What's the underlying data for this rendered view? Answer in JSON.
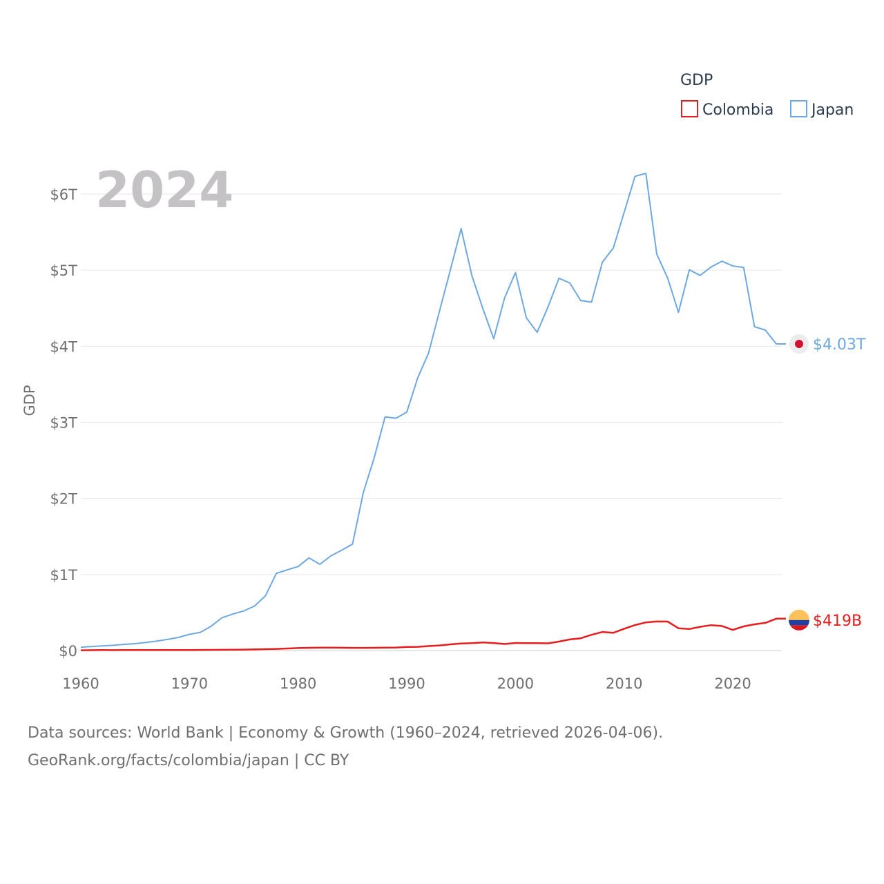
{
  "chart_data": {
    "type": "line",
    "ylabel": "GDP",
    "legend_title": "GDP",
    "current_year_label": "2024",
    "xlim": [
      1960,
      2024
    ],
    "ylim": [
      0,
      6.5
    ],
    "x_ticks": [
      1960,
      1970,
      1980,
      1990,
      2000,
      2010,
      2020
    ],
    "y_ticks": [
      {
        "value": 0,
        "label": "$0"
      },
      {
        "value": 1,
        "label": "$1T"
      },
      {
        "value": 2,
        "label": "$2T"
      },
      {
        "value": 3,
        "label": "$3T"
      },
      {
        "value": 4,
        "label": "$4T"
      },
      {
        "value": 5,
        "label": "$5T"
      },
      {
        "value": 6,
        "label": "$6T"
      }
    ],
    "units": "trillions USD",
    "series": [
      {
        "name": "Colombia",
        "color": "#e81c1c",
        "end_label": "$419B",
        "end_marker": "colombia-flag",
        "x": [
          1960,
          1961,
          1962,
          1963,
          1964,
          1965,
          1966,
          1967,
          1968,
          1969,
          1970,
          1971,
          1972,
          1973,
          1974,
          1975,
          1976,
          1977,
          1978,
          1979,
          1980,
          1981,
          1982,
          1983,
          1984,
          1985,
          1986,
          1987,
          1988,
          1989,
          1990,
          1991,
          1992,
          1993,
          1994,
          1995,
          1996,
          1997,
          1998,
          1999,
          2000,
          2001,
          2002,
          2003,
          2004,
          2005,
          2006,
          2007,
          2008,
          2009,
          2010,
          2011,
          2012,
          2013,
          2014,
          2015,
          2016,
          2017,
          2018,
          2019,
          2020,
          2021,
          2022,
          2023,
          2024
        ],
        "values": [
          0.004,
          0.005,
          0.006,
          0.005,
          0.006,
          0.006,
          0.006,
          0.006,
          0.006,
          0.007,
          0.007,
          0.008,
          0.009,
          0.01,
          0.012,
          0.013,
          0.015,
          0.019,
          0.022,
          0.027,
          0.033,
          0.036,
          0.038,
          0.038,
          0.037,
          0.035,
          0.035,
          0.036,
          0.039,
          0.04,
          0.047,
          0.049,
          0.059,
          0.067,
          0.082,
          0.093,
          0.097,
          0.107,
          0.099,
          0.086,
          0.1,
          0.098,
          0.097,
          0.095,
          0.118,
          0.146,
          0.162,
          0.207,
          0.244,
          0.233,
          0.287,
          0.335,
          0.37,
          0.382,
          0.381,
          0.293,
          0.283,
          0.312,
          0.334,
          0.323,
          0.271,
          0.318,
          0.345,
          0.364,
          0.419
        ]
      },
      {
        "name": "Japan",
        "color": "#6da8e0",
        "end_label": "$4.03T",
        "end_marker": "japan-flag",
        "x": [
          1960,
          1961,
          1962,
          1963,
          1964,
          1965,
          1966,
          1967,
          1968,
          1969,
          1970,
          1971,
          1972,
          1973,
          1974,
          1975,
          1976,
          1977,
          1978,
          1979,
          1980,
          1981,
          1982,
          1983,
          1984,
          1985,
          1986,
          1987,
          1988,
          1989,
          1990,
          1991,
          1992,
          1993,
          1994,
          1995,
          1996,
          1997,
          1998,
          1999,
          2000,
          2001,
          2002,
          2003,
          2004,
          2005,
          2006,
          2007,
          2008,
          2009,
          2010,
          2011,
          2012,
          2013,
          2014,
          2015,
          2016,
          2017,
          2018,
          2019,
          2020,
          2021,
          2022,
          2023,
          2024
        ],
        "values": [
          0.044,
          0.054,
          0.061,
          0.069,
          0.082,
          0.091,
          0.106,
          0.124,
          0.147,
          0.173,
          0.213,
          0.24,
          0.32,
          0.432,
          0.48,
          0.521,
          0.586,
          0.722,
          1.015,
          1.061,
          1.105,
          1.218,
          1.134,
          1.244,
          1.318,
          1.399,
          2.078,
          2.533,
          3.072,
          3.054,
          3.133,
          3.584,
          3.909,
          4.455,
          4.999,
          5.546,
          4.923,
          4.493,
          4.098,
          4.635,
          4.968,
          4.374,
          4.183,
          4.519,
          4.893,
          4.832,
          4.601,
          4.579,
          5.106,
          5.289,
          5.759,
          6.233,
          6.272,
          5.212,
          4.897,
          4.445,
          5.004,
          4.931,
          5.041,
          5.118,
          5.055,
          5.034,
          4.256,
          4.212,
          4.03
        ]
      }
    ]
  },
  "source": {
    "line1": "Data sources: World Bank | Economy & Growth (1960–2024, retrieved 2026-04-06).",
    "line2": "GeoRank.org/facts/colombia/japan | CC BY"
  }
}
